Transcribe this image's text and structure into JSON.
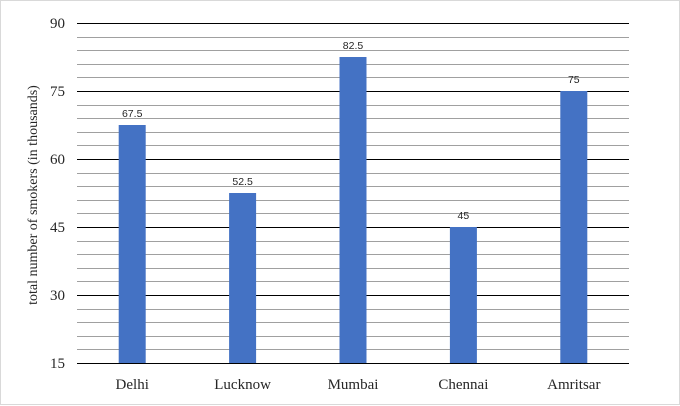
{
  "chart_data": {
    "type": "bar",
    "title": "",
    "xlabel": "",
    "ylabel": "total number of smokers (in thousands)",
    "categories": [
      "Delhi",
      "Lucknow",
      "Mumbai",
      "Chennai",
      "Amritsar"
    ],
    "values": [
      67.5,
      52.5,
      82.5,
      45,
      75
    ],
    "data_labels": [
      "67.5",
      "52.5",
      "82.5",
      "45",
      "75"
    ],
    "ylim": [
      15,
      90
    ],
    "yticks": [
      15,
      30,
      45,
      60,
      75,
      90
    ],
    "minor_grid_step": 3,
    "grid": true,
    "legend": "none",
    "bar_color": "#4472c4",
    "major_grid_color": "#000000",
    "minor_grid_color": "#808080"
  }
}
